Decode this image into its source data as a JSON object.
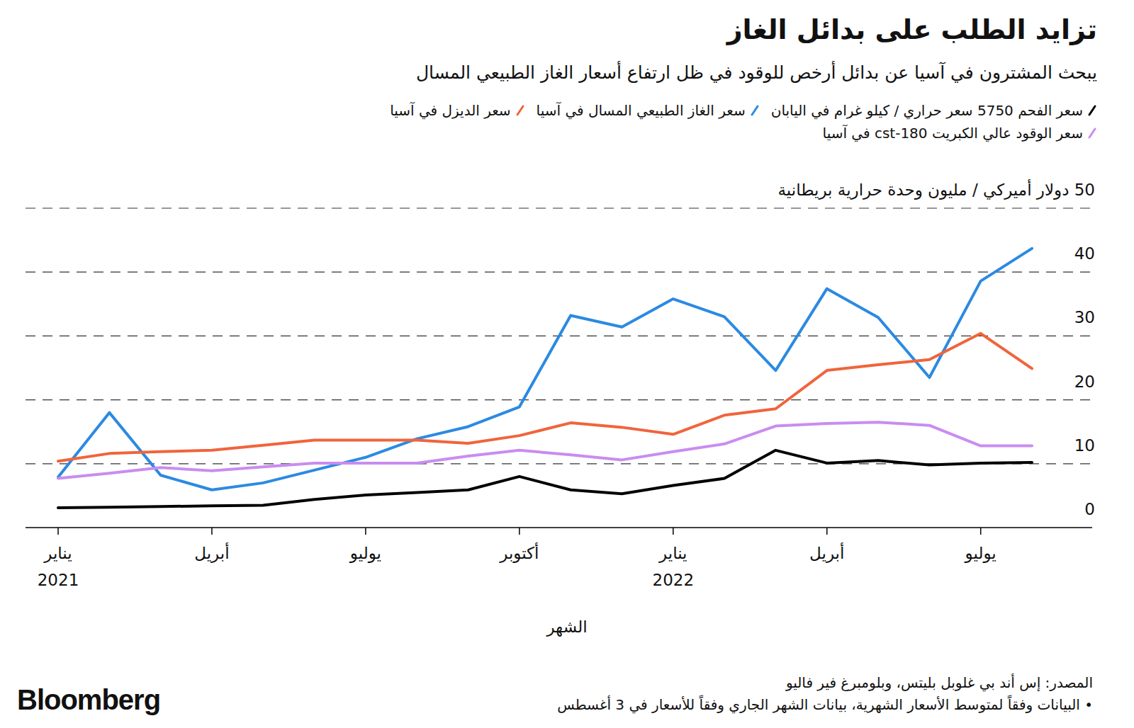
{
  "chart_data": {
    "type": "line",
    "title": "تزايد الطلب على بدائل الغاز",
    "subtitle": "يبحث المشترون في آسيا عن بدائل أرخص للوقود في ظل ارتفاع أسعار الغاز الطبيعي المسال",
    "x_label": "الشهر",
    "source": "المصدر: إس أند بي غلوبل بليتس، وبلومبرغ فير فاليو",
    "note": "• البيانات وفقاً لمتوسط الأسعار الشهرية، بيانات الشهر الجاري وفقاً للأسعار في 3 أغسطس",
    "brand": "Bloomberg",
    "categories": [
      "يناير\n2021",
      null,
      null,
      "أبريل",
      null,
      null,
      "يوليو",
      null,
      null,
      "أكتوبر",
      null,
      null,
      "يناير\n2022",
      null,
      null,
      "أبريل",
      null,
      null,
      "يوليو",
      null
    ],
    "ylim": [
      0,
      50
    ],
    "yticks": [
      0,
      10,
      20,
      30,
      40,
      {
        "value": 50,
        "label": "50 دولار أميركي / مليون وحدة حرارية بريطانية"
      }
    ],
    "grid": true,
    "legend": "top-right",
    "series": [
      {
        "name": "سعر الفحم 5750 سعر حراري / كيلو غرام في اليابان",
        "color": "#000000",
        "values": [
          3.1,
          3.2,
          3.3,
          3.4,
          3.5,
          4.4,
          5.1,
          5.5,
          5.9,
          8.0,
          5.9,
          5.3,
          6.6,
          7.7,
          12.1,
          10.1,
          10.5,
          9.8,
          10.1,
          10.2
        ]
      },
      {
        "name": "سعر الغاز الطبيعي المسال في آسيا",
        "color": "#2b8ae2",
        "values": [
          7.9,
          18.0,
          8.2,
          5.9,
          7.0,
          9.0,
          11.0,
          13.9,
          15.8,
          18.9,
          33.2,
          31.4,
          35.8,
          33.0,
          24.6,
          37.4,
          32.9,
          23.5,
          38.6,
          43.7
        ]
      },
      {
        "name": "سعر الديزل في آسيا",
        "color": "#f0643c",
        "values": [
          10.4,
          11.6,
          11.9,
          12.1,
          12.9,
          13.7,
          13.7,
          13.7,
          13.2,
          14.4,
          16.4,
          15.7,
          14.6,
          17.6,
          18.6,
          24.6,
          25.5,
          26.3,
          30.4,
          24.9
        ]
      },
      {
        "name": "سعر الوقود عالي الكبريت cst-180 في آسيا",
        "color": "#c98cf0",
        "values": [
          7.7,
          8.5,
          9.4,
          8.9,
          9.5,
          10.1,
          10.1,
          10.1,
          11.2,
          12.1,
          11.4,
          10.6,
          11.9,
          13.1,
          15.9,
          16.3,
          16.5,
          16.0,
          12.8,
          12.8
        ]
      }
    ]
  }
}
